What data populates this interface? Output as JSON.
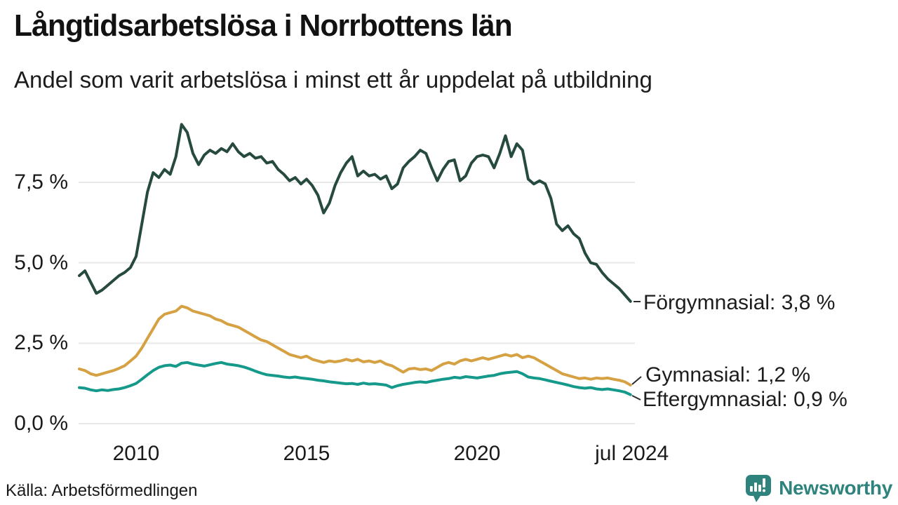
{
  "header": {
    "title": "Långtidsarbetslösa i Norrbottens län",
    "subtitle": "Andel som varit arbetslösa i minst ett år uppdelat på utbildning"
  },
  "footer": {
    "source": "Källa: Arbetsförmedlingen",
    "brand": "Newsworthy"
  },
  "colors": {
    "grid": "#e9e9e7",
    "leader": "#2b2b2b",
    "brand_teal": "#2f837d",
    "text": "#1a1a1a"
  },
  "chart_data": {
    "type": "line",
    "title": "Långtidsarbetslösa i Norrbottens län",
    "subtitle": "Andel som varit arbetslösa i minst ett år uppdelat på utbildning",
    "unit": "%",
    "x_start": 2008.3333,
    "x_step": 0.16667,
    "xlim": [
      2008.25,
      2024.7
    ],
    "ylim": [
      0,
      9.5
    ],
    "grid": true,
    "legend_position": "right-annotations",
    "x_ticks": [
      {
        "pos": 2010,
        "label": "2010"
      },
      {
        "pos": 2015,
        "label": "2015"
      },
      {
        "pos": 2020,
        "label": "2020"
      },
      {
        "pos": 2024.54,
        "label": "jul 2024"
      }
    ],
    "y_ticks": [
      {
        "value": 0,
        "label": "0,0 %"
      },
      {
        "value": 2.5,
        "label": "2,5 %"
      },
      {
        "value": 5,
        "label": "5,0 %"
      },
      {
        "value": 7.5,
        "label": "7,5 %"
      }
    ],
    "series": [
      {
        "name": "Förgymnasial",
        "color": "#274a40",
        "end_value": "3,8 %",
        "end_label": "Förgymnasial: 3,8 %",
        "values": [
          4.6,
          4.75,
          4.4,
          4.05,
          4.15,
          4.3,
          4.45,
          4.6,
          4.7,
          4.85,
          5.2,
          6.2,
          7.2,
          7.8,
          7.65,
          7.9,
          7.75,
          8.3,
          9.3,
          9.05,
          8.4,
          8.05,
          8.35,
          8.5,
          8.4,
          8.55,
          8.45,
          8.7,
          8.45,
          8.3,
          8.4,
          8.25,
          8.3,
          8.1,
          8.15,
          7.9,
          7.75,
          7.55,
          7.65,
          7.45,
          7.6,
          7.4,
          7.1,
          6.55,
          6.85,
          7.4,
          7.8,
          8.1,
          8.3,
          7.7,
          7.85,
          7.7,
          7.75,
          7.6,
          7.7,
          7.3,
          7.45,
          7.95,
          8.15,
          8.3,
          8.5,
          8.4,
          7.95,
          7.55,
          7.9,
          8.15,
          8.2,
          7.55,
          7.7,
          8.1,
          8.3,
          8.35,
          8.3,
          7.95,
          8.4,
          8.95,
          8.3,
          8.7,
          8.5,
          7.6,
          7.45,
          7.55,
          7.45,
          7.0,
          6.2,
          6.0,
          6.15,
          5.9,
          5.75,
          5.3,
          5.0,
          4.95,
          4.7,
          4.5,
          4.35,
          4.2,
          4.0,
          3.8
        ]
      },
      {
        "name": "Gymnasial",
        "color": "#d5a142",
        "end_value": "1,2 %",
        "end_label": "Gymnasial: 1,2 %",
        "values": [
          1.7,
          1.65,
          1.55,
          1.5,
          1.55,
          1.6,
          1.65,
          1.72,
          1.8,
          1.95,
          2.1,
          2.35,
          2.65,
          2.95,
          3.25,
          3.4,
          3.45,
          3.5,
          3.65,
          3.6,
          3.5,
          3.45,
          3.4,
          3.35,
          3.25,
          3.2,
          3.1,
          3.05,
          3.0,
          2.9,
          2.8,
          2.7,
          2.6,
          2.55,
          2.45,
          2.35,
          2.25,
          2.15,
          2.1,
          2.05,
          2.1,
          2.0,
          1.95,
          1.9,
          1.95,
          1.92,
          1.95,
          2.0,
          1.95,
          2.0,
          1.92,
          1.95,
          1.9,
          1.95,
          1.85,
          1.8,
          1.7,
          1.6,
          1.7,
          1.72,
          1.68,
          1.7,
          1.65,
          1.75,
          1.85,
          1.9,
          1.85,
          1.95,
          2.0,
          1.95,
          2.0,
          2.05,
          2.0,
          2.05,
          2.1,
          2.15,
          2.1,
          2.15,
          2.05,
          2.1,
          2.05,
          1.95,
          1.85,
          1.75,
          1.65,
          1.55,
          1.5,
          1.45,
          1.4,
          1.42,
          1.38,
          1.42,
          1.4,
          1.42,
          1.38,
          1.35,
          1.3,
          1.2
        ]
      },
      {
        "name": "Eftergymnasial",
        "color": "#14998a",
        "end_value": "0,9 %",
        "end_label": "Eftergymnasial: 0,9 %",
        "values": [
          1.12,
          1.1,
          1.05,
          1.02,
          1.05,
          1.03,
          1.06,
          1.08,
          1.12,
          1.18,
          1.25,
          1.38,
          1.52,
          1.65,
          1.75,
          1.8,
          1.82,
          1.78,
          1.88,
          1.9,
          1.85,
          1.82,
          1.79,
          1.83,
          1.87,
          1.9,
          1.85,
          1.83,
          1.8,
          1.76,
          1.7,
          1.63,
          1.57,
          1.52,
          1.5,
          1.48,
          1.45,
          1.43,
          1.45,
          1.42,
          1.4,
          1.38,
          1.35,
          1.33,
          1.3,
          1.28,
          1.26,
          1.24,
          1.25,
          1.22,
          1.26,
          1.23,
          1.24,
          1.22,
          1.2,
          1.12,
          1.18,
          1.22,
          1.25,
          1.28,
          1.3,
          1.28,
          1.32,
          1.35,
          1.38,
          1.4,
          1.44,
          1.42,
          1.46,
          1.44,
          1.42,
          1.45,
          1.48,
          1.5,
          1.55,
          1.58,
          1.6,
          1.62,
          1.55,
          1.45,
          1.42,
          1.4,
          1.36,
          1.32,
          1.28,
          1.24,
          1.2,
          1.15,
          1.12,
          1.1,
          1.12,
          1.08,
          1.06,
          1.08,
          1.05,
          1.02,
          0.98,
          0.9
        ]
      }
    ]
  }
}
